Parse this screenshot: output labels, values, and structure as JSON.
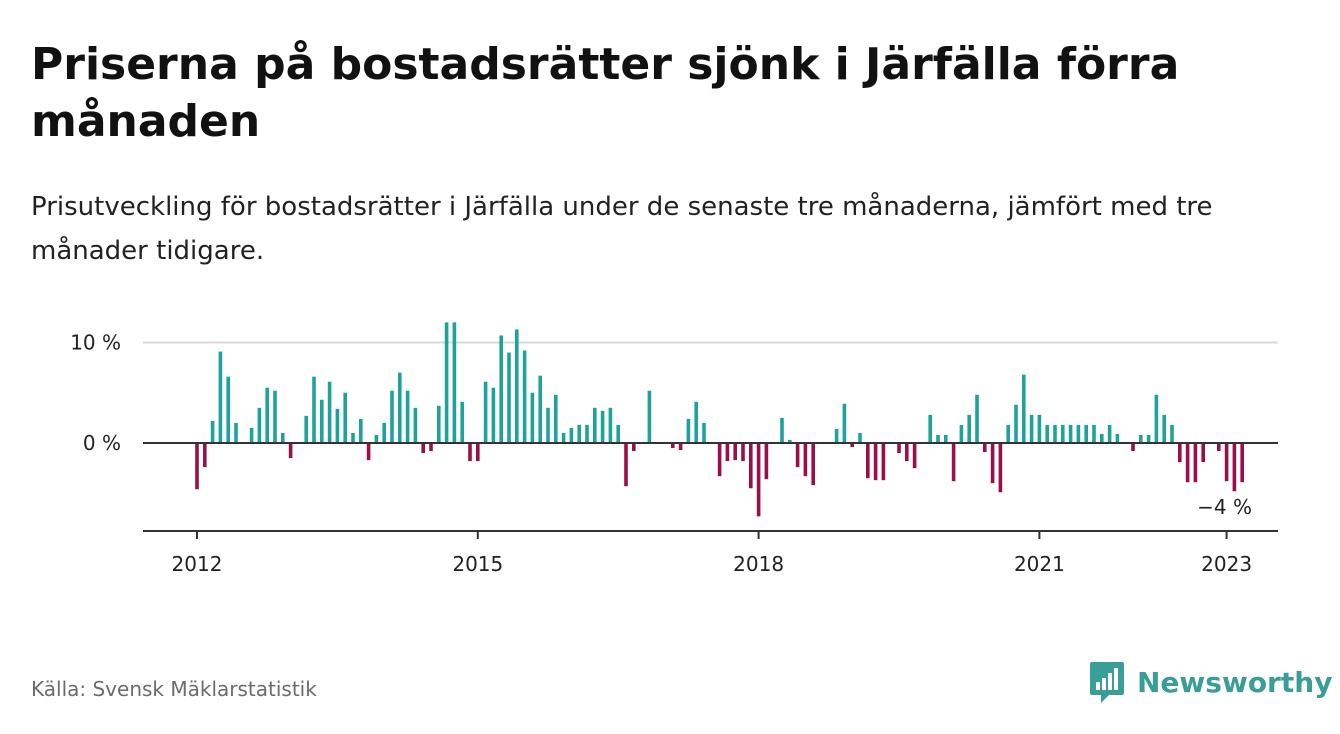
{
  "header": {
    "title": "Priserna på bostadsrätter sjönk i Järfälla förra månaden",
    "subtitle": "Prisutveckling för bostadsrätter i Järfälla under de senaste tre månaderna, jämfört med tre månader tidigare."
  },
  "footer": {
    "source": "Källa: Svensk Mäklarstatistik",
    "brand": "Newsworthy"
  },
  "colors": {
    "positive": "#1ea39a",
    "negative": "#9b0e47",
    "brand": "#3a9e98",
    "grid": "#d9d9d9",
    "axis": "#333333"
  },
  "icons": {
    "logo": "bar-chart-speech-icon"
  },
  "chart_data": {
    "type": "bar",
    "ylim": [
      -8.5,
      12
    ],
    "y_ticks": [
      {
        "value": 0,
        "label": "0 %"
      },
      {
        "value": 10,
        "label": "10 %"
      }
    ],
    "x_ticks": [
      {
        "year": 2012,
        "label": "2012"
      },
      {
        "year": 2015,
        "label": "2015"
      },
      {
        "year": 2018,
        "label": "2018"
      },
      {
        "year": 2021,
        "label": "2021"
      },
      {
        "year": 2023,
        "label": "2023"
      }
    ],
    "start": "2012-01",
    "annotation": {
      "text": "−4 %",
      "period": "2023-01"
    },
    "series": [
      {
        "values": [
          -4.6,
          -2.4,
          2.2,
          9.1,
          6.6,
          2.0,
          0,
          1.5,
          3.5,
          5.5,
          5.2,
          1.0,
          -1.5,
          0,
          2.7,
          6.6,
          4.3,
          6.1,
          3.4,
          5.0,
          1.0,
          2.4,
          -1.7,
          0.8,
          2.0,
          5.2,
          7.0,
          5.2,
          3.5,
          -1.0,
          -0.8,
          3.7,
          12.0,
          12.0,
          4.1,
          -1.8,
          -1.8,
          6.1,
          5.5,
          10.7,
          9.0,
          11.3,
          9.2,
          5.0,
          6.7,
          3.5,
          4.8,
          1.0,
          1.5,
          1.8,
          1.8,
          3.5,
          3.2,
          3.5,
          1.8,
          -4.3,
          -0.8,
          0,
          5.2,
          0,
          0,
          -0.5,
          -0.7,
          2.4,
          4.1,
          2.0,
          0,
          -3.3,
          -1.8,
          -1.7,
          -1.8,
          -4.5,
          -7.3,
          -3.6,
          0,
          2.5,
          0.3,
          -2.4,
          -3.3,
          -4.2,
          0,
          0,
          1.4,
          3.9,
          -0.4,
          1.0,
          -3.5,
          -3.7,
          -3.7,
          0,
          -1.0,
          -1.8,
          -2.5,
          0,
          2.8,
          0.8,
          0.8,
          -3.8,
          1.8,
          2.8,
          4.8,
          -0.9,
          -4.0,
          -4.9,
          1.8,
          3.8,
          6.8,
          2.8,
          2.8,
          1.8,
          1.8,
          1.8,
          1.8,
          1.8,
          1.8,
          1.8,
          0.9,
          1.8,
          0.9,
          0,
          -0.8,
          0.8,
          0.8,
          4.8,
          2.8,
          1.8,
          -1.9,
          -3.9,
          -3.9,
          -1.9,
          0,
          -0.8,
          -3.8,
          -4.8,
          -3.9
        ]
      }
    ]
  }
}
